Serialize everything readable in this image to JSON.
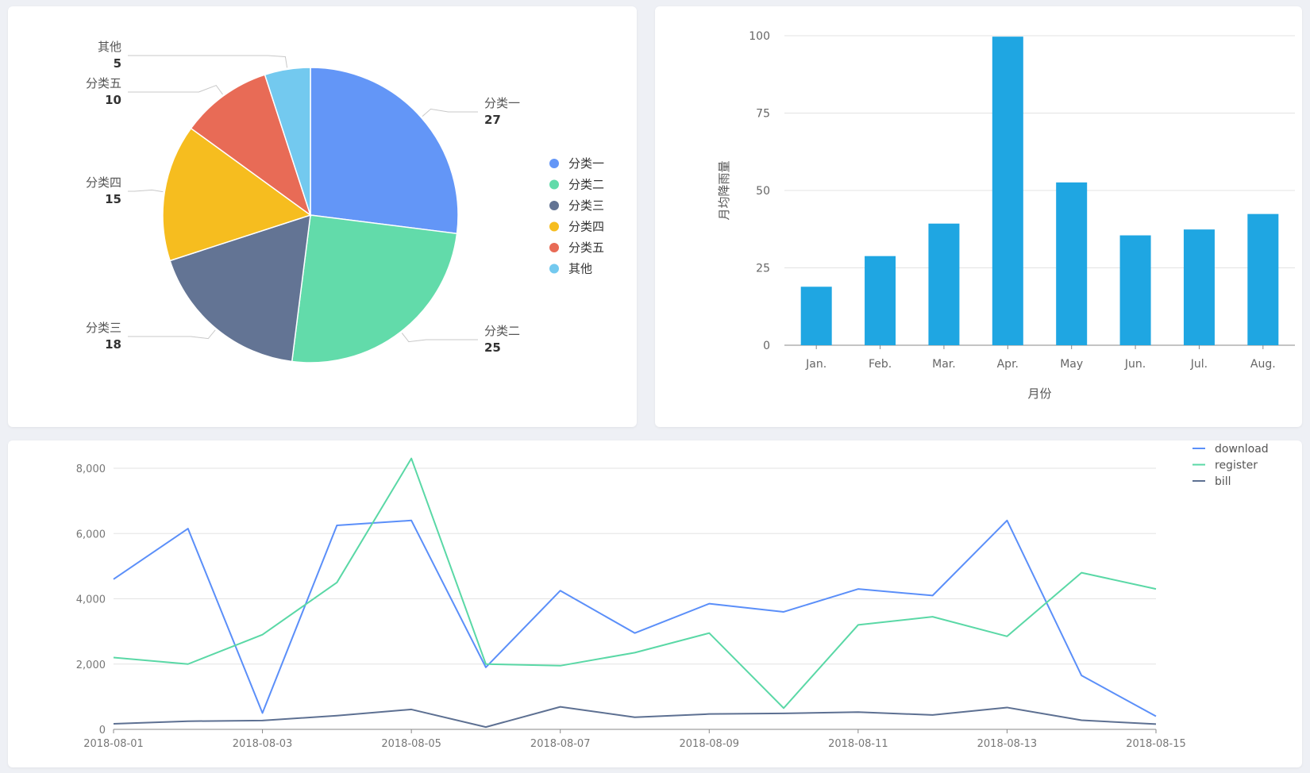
{
  "charts": {
    "pie": {
      "type": "pie",
      "slices": [
        {
          "label": "分类一",
          "value": 27,
          "color": "#6396f7"
        },
        {
          "label": "分类二",
          "value": 25,
          "color": "#62dbaa"
        },
        {
          "label": "分类三",
          "value": 18,
          "color": "#637494"
        },
        {
          "label": "分类四",
          "value": 15,
          "color": "#f6bd1f"
        },
        {
          "label": "分类五",
          "value": 10,
          "color": "#e86b56"
        },
        {
          "label": "其他",
          "value": 5,
          "color": "#73c9ef"
        }
      ],
      "legend_placement": "right"
    },
    "bar": {
      "type": "bar",
      "categories": [
        "Jan.",
        "Feb.",
        "Mar.",
        "Apr.",
        "May",
        "Jun.",
        "Jul.",
        "Aug."
      ],
      "values": [
        18.9,
        28.8,
        39.3,
        99.7,
        52.6,
        35.5,
        37.4,
        42.4
      ],
      "ylabel": "月均降雨量",
      "xlabel": "月份",
      "ylim": [
        0,
        100
      ],
      "yticks": [
        0,
        25,
        50,
        75,
        100
      ],
      "color": "#1fa6e2",
      "grid": true
    },
    "line": {
      "type": "line",
      "x": [
        "2018-08-01",
        "2018-08-02",
        "2018-08-03",
        "2018-08-04",
        "2018-08-05",
        "2018-08-06",
        "2018-08-07",
        "2018-08-08",
        "2018-08-09",
        "2018-08-10",
        "2018-08-11",
        "2018-08-12",
        "2018-08-13",
        "2018-08-14",
        "2018-08-15"
      ],
      "xtick_labels": [
        "2018-08-01",
        "2018-08-03",
        "2018-08-05",
        "2018-08-07",
        "2018-08-09",
        "2018-08-11",
        "2018-08-13",
        "2018-08-15"
      ],
      "ylim": [
        0,
        8000
      ],
      "yticks": [
        0,
        2000,
        4000,
        6000,
        8000
      ],
      "ytick_labels": [
        "0",
        "2,000",
        "4,000",
        "6,000",
        "8,000"
      ],
      "grid": true,
      "legend_placement": "top-right",
      "series": [
        {
          "name": "download",
          "color": "#5b8ff9",
          "values": [
            4600,
            6150,
            500,
            6250,
            6400,
            1900,
            4250,
            2950,
            3850,
            3600,
            4300,
            4100,
            6400,
            1650,
            400
          ]
        },
        {
          "name": "register",
          "color": "#5ad8a6",
          "values": [
            2200,
            2000,
            2900,
            4500,
            8300,
            2000,
            1950,
            2350,
            2950,
            650,
            3200,
            3450,
            2850,
            4800,
            4300
          ]
        },
        {
          "name": "bill",
          "color": "#5d7092",
          "values": [
            170,
            250,
            270,
            420,
            610,
            70,
            690,
            370,
            470,
            490,
            530,
            440,
            670,
            280,
            160
          ]
        }
      ]
    }
  }
}
